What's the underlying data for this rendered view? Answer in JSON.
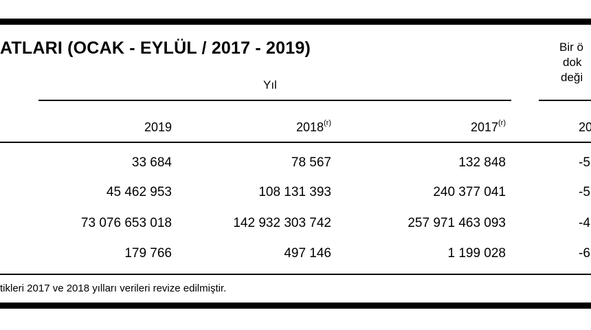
{
  "title": "ATLARI (OCAK - EYLÜL / 2017 - 2019)",
  "right_note": {
    "line1": "Bir ö",
    "line2": "dok",
    "line3": "deği"
  },
  "group_header": "Yıl",
  "columns": [
    {
      "label": "2019",
      "superscript": ""
    },
    {
      "label": "2018",
      "superscript": "(r)"
    },
    {
      "label": "2017",
      "superscript": "(r)"
    },
    {
      "label": "20",
      "superscript": ""
    }
  ],
  "rows": [
    {
      "c2019": "33 684",
      "c2018": "78 567",
      "c2017": "132 848",
      "change": "-5"
    },
    {
      "c2019": "45 462 953",
      "c2018": "108 131 393",
      "c2017": "240 377 041",
      "change": "-5"
    },
    {
      "c2019": "73 076 653 018",
      "c2018": "142 932 303 742",
      "c2017": "257 971 463 093",
      "change": "-4"
    },
    {
      "c2019": "179 766",
      "c2018": "497 146",
      "c2017": "1 199 028",
      "change": "-6"
    }
  ],
  "footnote": "tikleri 2017 ve 2018 yılları verileri revize edilmiştir."
}
